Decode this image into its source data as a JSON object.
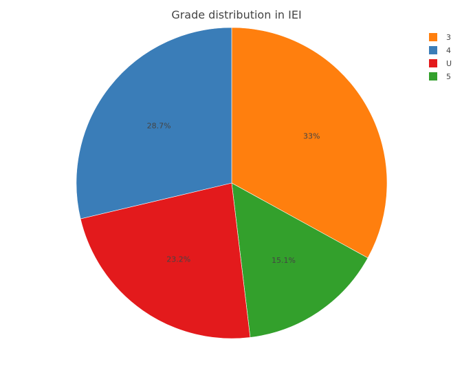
{
  "chart_data": {
    "type": "pie",
    "title": "Grade distribution in IEI",
    "slices": [
      {
        "label": "3",
        "percent": 33.0,
        "display": "33%",
        "color": "#ff7f0e"
      },
      {
        "label": "4",
        "percent": 28.7,
        "display": "28.7%",
        "color": "#3a7db8"
      },
      {
        "label": "U",
        "percent": 23.2,
        "display": "23.2%",
        "color": "#e31a1c"
      },
      {
        "label": "5",
        "percent": 15.1,
        "display": "15.1%",
        "color": "#33a02c"
      }
    ],
    "slice_order": [
      "3",
      "5",
      "U",
      "4"
    ],
    "direction": "clockwise",
    "start": "top",
    "legend_position": "top-right"
  }
}
